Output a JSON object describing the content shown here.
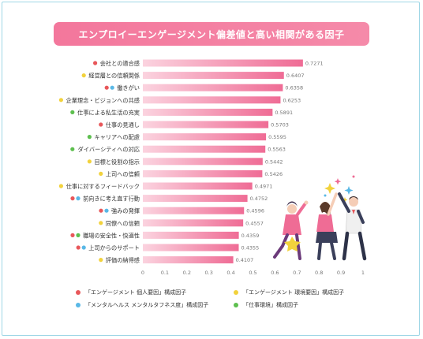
{
  "title": "エンプロイーエンゲージメント偏差値と高い相関がある因子",
  "colors": {
    "red": "#e8575a",
    "blue": "#59b8e6",
    "yellow": "#f2d23c",
    "green": "#5dbf4e",
    "bar_light": "#fbd3df",
    "bar_dark": "#ef6c95"
  },
  "legend": [
    {
      "label": "「エンゲージメント 個人要因」構成因子",
      "color": "red"
    },
    {
      "label": "「エンゲージメント 環境要因」構成因子",
      "color": "yellow"
    },
    {
      "label": "「メンタルヘルス メンタルタフネス度」構成因子",
      "color": "blue"
    },
    {
      "label": "「仕事環境」構成因子",
      "color": "green"
    }
  ],
  "chart_data": {
    "type": "bar",
    "orientation": "horizontal",
    "title": "エンプロイーエンゲージメント偏差値と高い相関がある因子",
    "xlim": [
      0,
      1
    ],
    "x_ticks": [
      "0",
      "0.1",
      "0.2",
      "0.3",
      "0.4",
      "0.5",
      "0.6",
      "0.7",
      "0.8",
      "0.9",
      "1"
    ],
    "grid": false,
    "categories": [
      "会社との適合感",
      "経営層との信頼関係",
      "働きがい",
      "企業理念・ビジョンへの共感",
      "仕事による私生活の充実",
      "仕事の見通し",
      "キャリアへの配慮",
      "ダイバーシティへの対応",
      "目標と役割の指示",
      "上司への信頼",
      "仕事に対するフィードバック",
      "前向きに考え直す行動",
      "強みの発揮",
      "同僚への信頼",
      "職場の安全性・快適性",
      "上司からのサポート",
      "評価の納得感"
    ],
    "values": [
      0.7271,
      0.6407,
      0.6358,
      0.6253,
      0.5891,
      0.5703,
      0.5595,
      0.5563,
      0.5442,
      0.5426,
      0.4971,
      0.4752,
      0.4596,
      0.4557,
      0.4359,
      0.4355,
      0.4107
    ],
    "value_labels": [
      "0.7271",
      "0.6407",
      "0.6358",
      "0.6253",
      "0.5891",
      "0.5703",
      "0.5595",
      "0.5563",
      "0.5442",
      "0.5426",
      "0.4971",
      "0.4752",
      "0.4596",
      "0.4557",
      "0.4359",
      "0.4355",
      "0.4107"
    ],
    "category_dots": [
      [
        "red"
      ],
      [
        "yellow"
      ],
      [
        "red",
        "blue"
      ],
      [
        "yellow"
      ],
      [
        "green"
      ],
      [
        "red"
      ],
      [
        "green"
      ],
      [
        "green"
      ],
      [
        "yellow"
      ],
      [
        "yellow"
      ],
      [
        "yellow"
      ],
      [
        "red",
        "blue"
      ],
      [
        "red",
        "blue"
      ],
      [
        "yellow"
      ],
      [
        "red",
        "green"
      ],
      [
        "red",
        "blue"
      ],
      [
        "yellow"
      ]
    ]
  }
}
